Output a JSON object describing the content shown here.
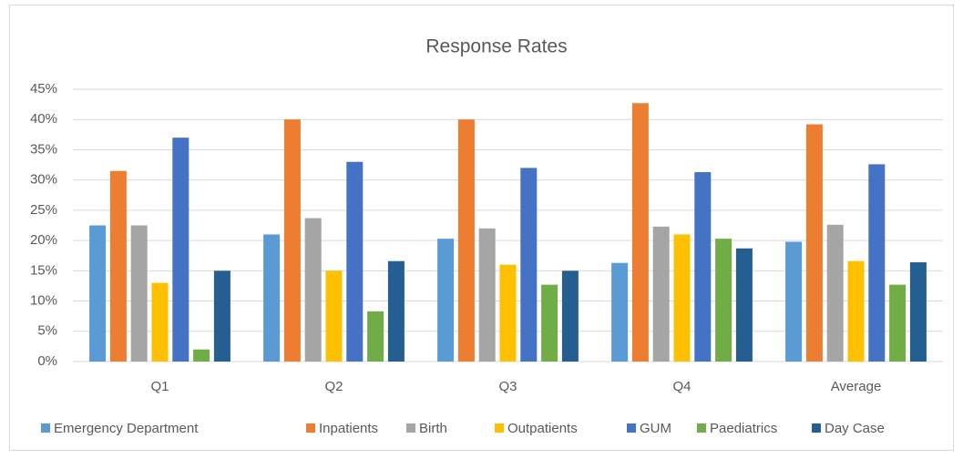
{
  "chart_data": {
    "type": "bar",
    "title": "Response Rates",
    "categories": [
      "Q1",
      "Q2",
      "Q3",
      "Q4",
      "Average"
    ],
    "series": [
      {
        "name": "Emergency Department",
        "color": "#5b9bd5",
        "values": [
          22.5,
          21,
          20.3,
          16.3,
          19.8
        ]
      },
      {
        "name": "Inpatients",
        "color": "#ed7d31",
        "values": [
          31.5,
          40,
          40,
          42.7,
          39.2
        ]
      },
      {
        "name": "Birth",
        "color": "#a5a5a5",
        "values": [
          22.5,
          23.7,
          22,
          22.3,
          22.6
        ]
      },
      {
        "name": "Outpatients",
        "color": "#ffc000",
        "values": [
          13,
          15,
          16,
          21,
          16.6
        ]
      },
      {
        "name": "GUM",
        "color": "#4472c4",
        "values": [
          37,
          33,
          32,
          31.3,
          32.6
        ]
      },
      {
        "name": "Paediatrics",
        "color": "#70ad47",
        "values": [
          2,
          8.3,
          12.7,
          20.3,
          12.7
        ]
      },
      {
        "name": "Day Case",
        "color": "#255e91",
        "values": [
          15,
          16.6,
          15,
          18.7,
          16.4
        ]
      }
    ],
    "ylim": [
      0,
      45
    ],
    "yticks": [
      {
        "value": 0,
        "label": "0%"
      },
      {
        "value": 5,
        "label": "5%"
      },
      {
        "value": 10,
        "label": "10%"
      },
      {
        "value": 15,
        "label": "15%"
      },
      {
        "value": 20,
        "label": "20%"
      },
      {
        "value": 25,
        "label": "25%"
      },
      {
        "value": 30,
        "label": "30%"
      },
      {
        "value": 35,
        "label": "35%"
      },
      {
        "value": 40,
        "label": "40%"
      },
      {
        "value": 45,
        "label": "45%"
      }
    ],
    "grid": true,
    "legend": "bottom"
  }
}
